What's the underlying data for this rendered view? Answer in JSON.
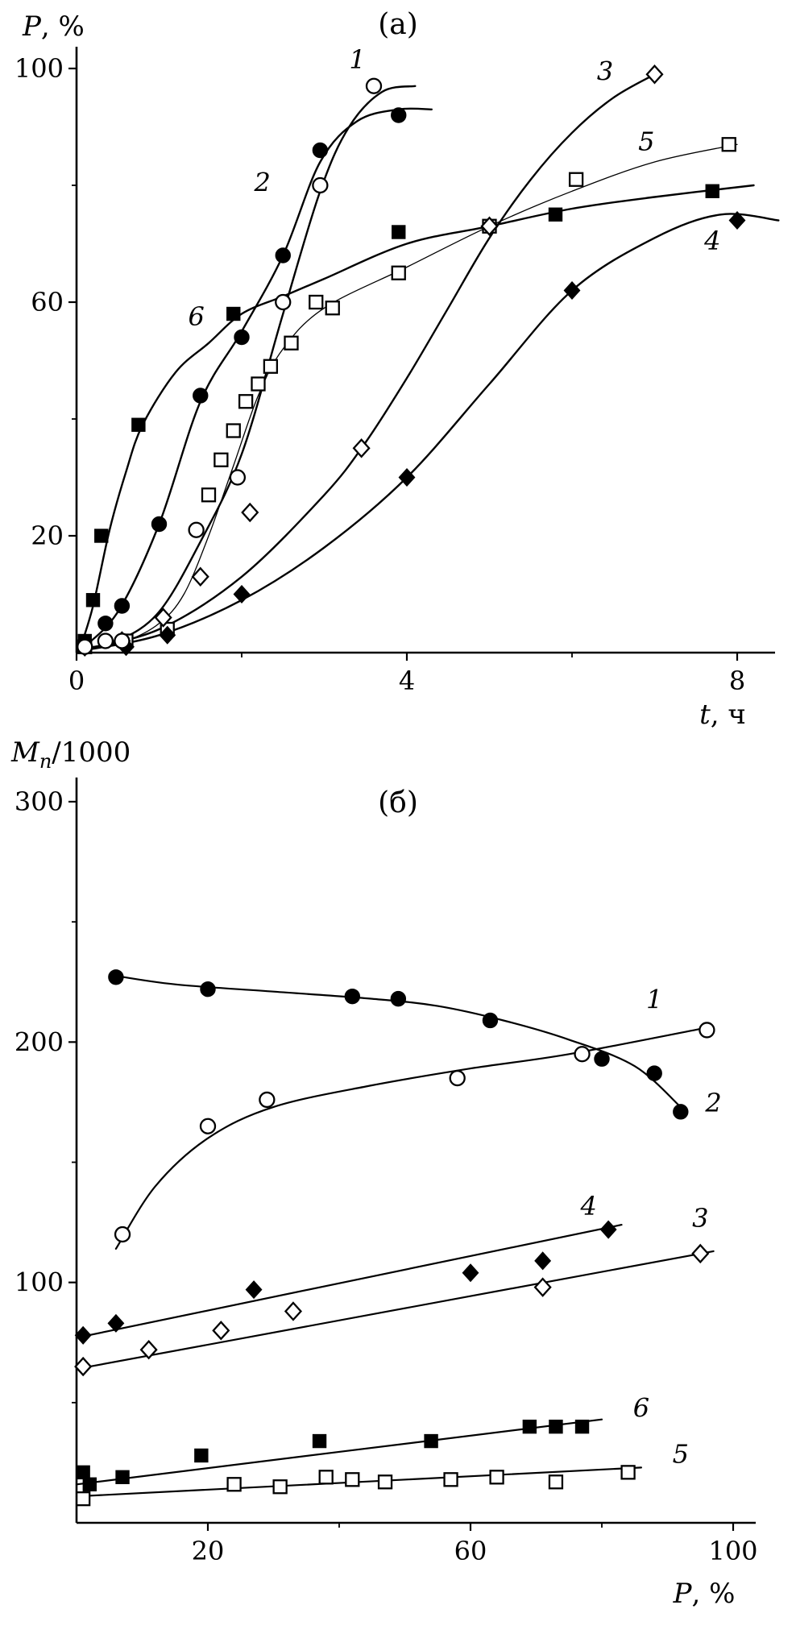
{
  "figure": {
    "background": "#ffffff",
    "ink": "#000000"
  },
  "chart_data": [
    {
      "id": "a",
      "type": "scatter",
      "panel_label": "(а)",
      "ylabel_parts": [
        {
          "t": "P",
          "i": true
        },
        {
          "t": ", %",
          "i": false
        }
      ],
      "xlabel_parts": [
        {
          "t": "t",
          "i": true
        },
        {
          "t": ", ч",
          "i": false
        }
      ],
      "xlim": [
        0,
        8
      ],
      "ylim": [
        0,
        100
      ],
      "xticks": {
        "labeled": [
          {
            "v": 0,
            "label": "0"
          },
          {
            "v": 4,
            "label": "4"
          },
          {
            "v": 8,
            "label": "8"
          }
        ],
        "minor": [
          2,
          6
        ]
      },
      "yticks": {
        "labeled": [
          {
            "v": 20,
            "label": "20"
          },
          {
            "v": 60,
            "label": "60"
          },
          {
            "v": 100,
            "label": "100"
          }
        ],
        "minor": [
          40,
          80
        ]
      },
      "series": [
        {
          "name": "1",
          "marker": "circle-open",
          "line_width": 2.4,
          "label": {
            "text": "1",
            "x": 3.4,
            "y": 100
          },
          "points": [
            [
              0.1,
              1
            ],
            [
              0.35,
              2
            ],
            [
              0.55,
              2
            ],
            [
              1.45,
              21
            ],
            [
              1.95,
              30
            ],
            [
              2.5,
              60
            ],
            [
              2.95,
              80
            ],
            [
              3.6,
              97
            ]
          ],
          "curve": [
            [
              0.05,
              0.5
            ],
            [
              0.5,
              2
            ],
            [
              1,
              7
            ],
            [
              1.5,
              19
            ],
            [
              2,
              34
            ],
            [
              2.5,
              58
            ],
            [
              2.95,
              79
            ],
            [
              3.3,
              90
            ],
            [
              3.7,
              96
            ],
            [
              4.1,
              97
            ]
          ]
        },
        {
          "name": "2",
          "marker": "circle-filled",
          "line_width": 2.4,
          "label": {
            "text": "2",
            "x": 2.25,
            "y": 79
          },
          "points": [
            [
              0.1,
              1
            ],
            [
              0.35,
              5
            ],
            [
              0.55,
              8
            ],
            [
              1.0,
              22
            ],
            [
              1.5,
              44
            ],
            [
              2.0,
              54
            ],
            [
              2.5,
              68
            ],
            [
              2.95,
              86
            ],
            [
              3.9,
              92
            ]
          ],
          "curve": [
            [
              0.05,
              0.5
            ],
            [
              0.5,
              7
            ],
            [
              1,
              22
            ],
            [
              1.5,
              43
            ],
            [
              2,
              55
            ],
            [
              2.5,
              68
            ],
            [
              2.95,
              84
            ],
            [
              3.4,
              91
            ],
            [
              3.9,
              93
            ],
            [
              4.3,
              93
            ]
          ]
        },
        {
          "name": "3",
          "marker": "diamond-open",
          "line_width": 2.4,
          "label": {
            "text": "3",
            "x": 6.4,
            "y": 98
          },
          "points": [
            [
              0.1,
              1
            ],
            [
              0.55,
              2
            ],
            [
              1.05,
              6
            ],
            [
              1.5,
              13
            ],
            [
              2.1,
              24
            ],
            [
              3.45,
              35
            ],
            [
              5.0,
              73
            ],
            [
              7.0,
              99
            ]
          ],
          "curve": [
            [
              0.05,
              0.5
            ],
            [
              1,
              4
            ],
            [
              2,
              13
            ],
            [
              3,
              27
            ],
            [
              3.5,
              36
            ],
            [
              4,
              47
            ],
            [
              4.5,
              59
            ],
            [
              5,
              71
            ],
            [
              5.5,
              81
            ],
            [
              6,
              89
            ],
            [
              6.5,
              95
            ],
            [
              7,
              99
            ]
          ]
        },
        {
          "name": "4",
          "marker": "diamond-filled",
          "line_width": 2.4,
          "label": {
            "text": "4",
            "x": 7.7,
            "y": 69
          },
          "points": [
            [
              0.1,
              1
            ],
            [
              0.6,
              1
            ],
            [
              1.1,
              3
            ],
            [
              2.0,
              10
            ],
            [
              4.0,
              30
            ],
            [
              6.0,
              62
            ],
            [
              8.0,
              74
            ]
          ],
          "curve": [
            [
              0.05,
              0.3
            ],
            [
              1,
              3
            ],
            [
              2,
              9
            ],
            [
              3,
              18
            ],
            [
              4,
              30
            ],
            [
              5,
              46
            ],
            [
              6,
              62
            ],
            [
              7,
              71
            ],
            [
              7.8,
              75
            ],
            [
              8.5,
              74
            ]
          ]
        },
        {
          "name": "5",
          "marker": "square-open",
          "line_width": 1.3,
          "label": {
            "text": "5",
            "x": 6.9,
            "y": 86
          },
          "points": [
            [
              0.1,
              1
            ],
            [
              0.6,
              2
            ],
            [
              1.1,
              4
            ],
            [
              1.6,
              27
            ],
            [
              1.75,
              33
            ],
            [
              1.9,
              38
            ],
            [
              2.05,
              43
            ],
            [
              2.2,
              46
            ],
            [
              2.35,
              49
            ],
            [
              2.6,
              53
            ],
            [
              2.9,
              60
            ],
            [
              3.1,
              59
            ],
            [
              3.9,
              65
            ],
            [
              5.0,
              73
            ],
            [
              6.05,
              81
            ],
            [
              7.9,
              87
            ]
          ],
          "curve": [
            [
              0.05,
              0.3
            ],
            [
              0.6,
              2
            ],
            [
              1.0,
              5
            ],
            [
              1.3,
              10
            ],
            [
              1.6,
              20
            ],
            [
              1.9,
              32
            ],
            [
              2.2,
              44
            ],
            [
              2.5,
              52
            ],
            [
              3,
              59
            ],
            [
              4,
              66
            ],
            [
              5,
              73
            ],
            [
              6,
              79
            ],
            [
              7,
              84
            ],
            [
              8,
              87
            ]
          ]
        },
        {
          "name": "6",
          "marker": "square-filled",
          "line_width": 2.4,
          "label": {
            "text": "6",
            "x": 1.45,
            "y": 56
          },
          "points": [
            [
              0.1,
              2
            ],
            [
              0.2,
              9
            ],
            [
              0.3,
              20
            ],
            [
              0.75,
              39
            ],
            [
              1.9,
              58
            ],
            [
              3.9,
              72
            ],
            [
              5.8,
              75
            ],
            [
              7.7,
              79
            ]
          ],
          "curve": [
            [
              0.05,
              1
            ],
            [
              0.2,
              8
            ],
            [
              0.4,
              21
            ],
            [
              0.6,
              31
            ],
            [
              0.8,
              39
            ],
            [
              1.2,
              48
            ],
            [
              1.6,
              53
            ],
            [
              2,
              58
            ],
            [
              2.5,
              61
            ],
            [
              3,
              64
            ],
            [
              4,
              70
            ],
            [
              5,
              73
            ],
            [
              6,
              76
            ],
            [
              7,
              78
            ],
            [
              8.2,
              80
            ]
          ]
        }
      ]
    },
    {
      "id": "b",
      "type": "scatter",
      "panel_label": "(б)",
      "ylabel_parts": [
        {
          "t": "M",
          "i": true
        },
        {
          "t": "n",
          "i": true,
          "sub": true
        },
        {
          "t": "/1000",
          "i": false
        }
      ],
      "xlabel_parts": [
        {
          "t": "P",
          "i": true
        },
        {
          "t": ", %",
          "i": false
        }
      ],
      "xlim": [
        0,
        100
      ],
      "ylim": [
        0,
        300
      ],
      "xticks": {
        "labeled": [
          {
            "v": 20,
            "label": "20"
          },
          {
            "v": 60,
            "label": "60"
          },
          {
            "v": 100,
            "label": "100"
          }
        ],
        "minor": [
          40,
          80
        ]
      },
      "yticks": {
        "labeled": [
          {
            "v": 100,
            "label": "100"
          },
          {
            "v": 200,
            "label": "200"
          },
          {
            "v": 300,
            "label": "300"
          }
        ],
        "minor": [
          50,
          150,
          250
        ]
      },
      "series": [
        {
          "name": "1",
          "marker": "circle-open",
          "line_width": 2.2,
          "label": {
            "text": "1",
            "x": 88,
            "y": 214
          },
          "points": [
            [
              7,
              120
            ],
            [
              20,
              165
            ],
            [
              29,
              176
            ],
            [
              58,
              185
            ],
            [
              77,
              195
            ],
            [
              96,
              205
            ]
          ],
          "curve": [
            [
              6,
              114
            ],
            [
              12,
              140
            ],
            [
              20,
              160
            ],
            [
              30,
              173
            ],
            [
              45,
              182
            ],
            [
              60,
              189
            ],
            [
              75,
              195
            ],
            [
              96,
              206
            ]
          ]
        },
        {
          "name": "2",
          "marker": "circle-filled",
          "line_width": 2.2,
          "label": {
            "text": "2",
            "x": 97,
            "y": 171
          },
          "points": [
            [
              6,
              227
            ],
            [
              20,
              222
            ],
            [
              42,
              219
            ],
            [
              49,
              218
            ],
            [
              63,
              209
            ],
            [
              80,
              193
            ],
            [
              88,
              187
            ],
            [
              92,
              171
            ]
          ],
          "curve": [
            [
              5,
              228
            ],
            [
              15,
              224
            ],
            [
              30,
              221
            ],
            [
              45,
              218
            ],
            [
              55,
              215
            ],
            [
              65,
              209
            ],
            [
              75,
              201
            ],
            [
              85,
              190
            ],
            [
              92,
              173
            ]
          ]
        },
        {
          "name": "3",
          "marker": "diamond-open",
          "line_width": 2.2,
          "label": {
            "text": "3",
            "x": 95,
            "y": 123
          },
          "points": [
            [
              1,
              65
            ],
            [
              11,
              72
            ],
            [
              22,
              80
            ],
            [
              33,
              88
            ],
            [
              71,
              98
            ],
            [
              95,
              112
            ]
          ],
          "curve": [
            [
              0,
              64
            ],
            [
              97,
              113
            ]
          ]
        },
        {
          "name": "4",
          "marker": "diamond-filled",
          "line_width": 2.2,
          "label": {
            "text": "4",
            "x": 78,
            "y": 128
          },
          "points": [
            [
              1,
              78
            ],
            [
              6,
              83
            ],
            [
              27,
              97
            ],
            [
              60,
              104
            ],
            [
              71,
              109
            ],
            [
              81,
              122
            ]
          ],
          "curve": [
            [
              0,
              77
            ],
            [
              83,
              124
            ]
          ]
        },
        {
          "name": "5",
          "marker": "square-open",
          "line_width": 2.2,
          "label": {
            "text": "5",
            "x": 92,
            "y": 25
          },
          "points": [
            [
              1,
              10
            ],
            [
              24,
              16
            ],
            [
              31,
              15
            ],
            [
              38,
              19
            ],
            [
              42,
              18
            ],
            [
              47,
              17
            ],
            [
              57,
              18
            ],
            [
              64,
              19
            ],
            [
              73,
              17
            ],
            [
              84,
              21
            ]
          ],
          "curve": [
            [
              0,
              11
            ],
            [
              86,
              23
            ]
          ]
        },
        {
          "name": "6",
          "marker": "square-filled",
          "line_width": 2.2,
          "label": {
            "text": "6",
            "x": 86,
            "y": 44
          },
          "points": [
            [
              1,
              21
            ],
            [
              2,
              16
            ],
            [
              7,
              19
            ],
            [
              19,
              28
            ],
            [
              37,
              34
            ],
            [
              54,
              34
            ],
            [
              69,
              40
            ],
            [
              73,
              40
            ],
            [
              77,
              40
            ]
          ],
          "curve": [
            [
              0,
              16
            ],
            [
              80,
              43
            ]
          ]
        }
      ]
    }
  ]
}
